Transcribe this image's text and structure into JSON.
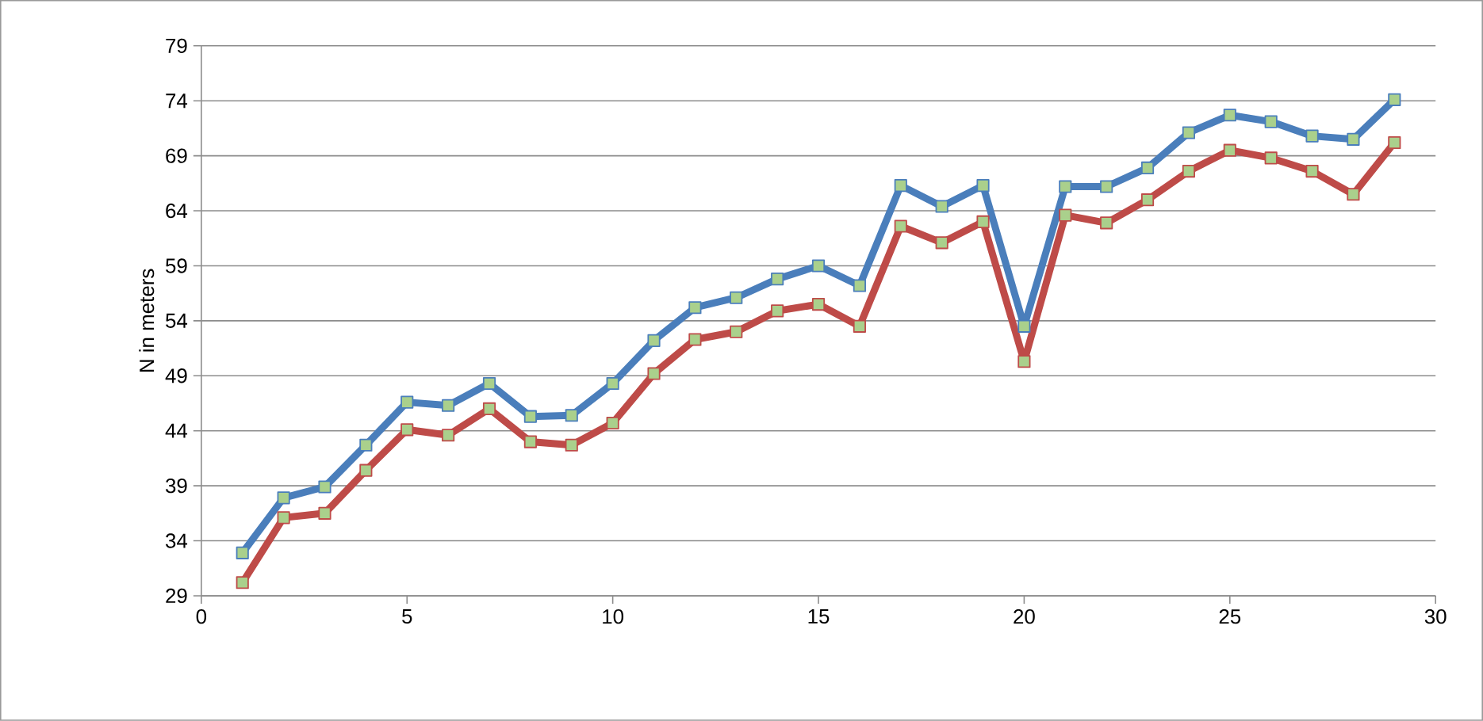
{
  "chart_data": {
    "type": "line",
    "ylabel": "N in meters",
    "x": [
      1,
      2,
      3,
      4,
      5,
      6,
      7,
      8,
      9,
      10,
      11,
      12,
      13,
      14,
      15,
      16,
      17,
      18,
      19,
      20,
      21,
      22,
      23,
      24,
      25,
      26,
      27,
      28,
      29
    ],
    "series": [
      {
        "color": "#4a7ebb",
        "values": [
          32.9,
          37.9,
          38.9,
          42.7,
          46.6,
          46.3,
          48.3,
          45.3,
          45.4,
          48.3,
          52.2,
          55.2,
          56.1,
          57.8,
          59.0,
          57.2,
          66.3,
          64.4,
          66.3,
          53.5,
          66.2,
          66.2,
          67.9,
          71.1,
          72.7,
          72.1,
          70.8,
          70.5,
          74.1
        ]
      },
      {
        "color": "#be4b48",
        "values": [
          30.2,
          36.1,
          36.5,
          40.4,
          44.1,
          43.6,
          46.0,
          43.0,
          42.7,
          44.7,
          49.2,
          52.3,
          53.0,
          54.9,
          55.5,
          53.5,
          62.6,
          61.1,
          63.0,
          50.3,
          63.6,
          62.9,
          65.0,
          67.6,
          69.5,
          68.8,
          67.6,
          65.5,
          70.2
        ]
      }
    ],
    "xlim": [
      0,
      30
    ],
    "xticks": [
      0,
      5,
      10,
      15,
      20,
      25,
      30
    ],
    "ylim": [
      29,
      79
    ],
    "yticks": [
      29,
      34,
      39,
      44,
      49,
      54,
      59,
      64,
      69,
      74,
      79
    ],
    "grid": "y",
    "marker": "square",
    "line_style": "solid"
  }
}
